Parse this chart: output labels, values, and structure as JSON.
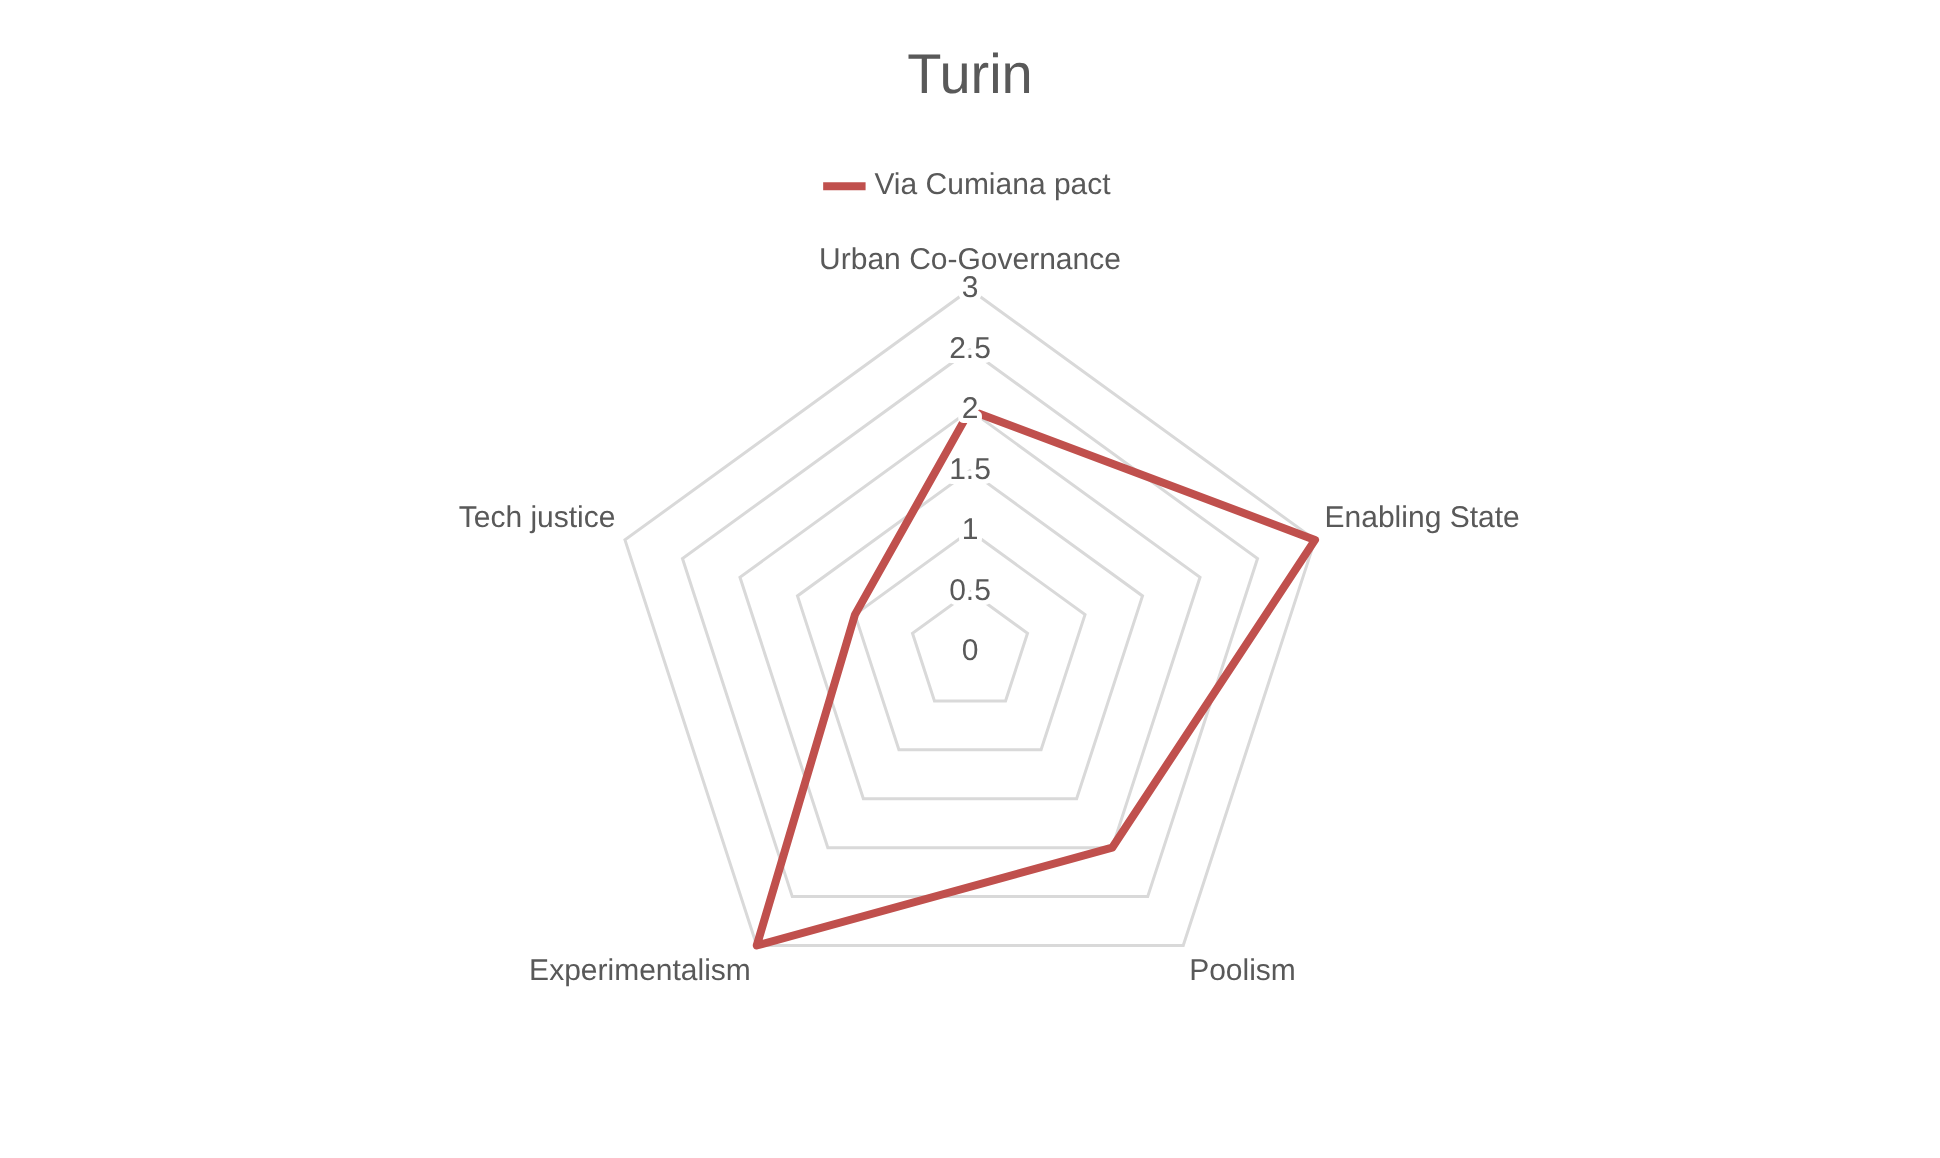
{
  "chart_data": {
    "type": "radar",
    "title": "Turin",
    "categories": [
      "Urban Co-Governance",
      "Enabling State",
      "Poolism",
      "Experimentalism",
      "Tech justice"
    ],
    "series": [
      {
        "name": "Via Cumiana pact",
        "color": "#c0504d",
        "values": [
          2,
          3,
          2,
          3,
          1
        ]
      }
    ],
    "ylim": [
      0,
      3
    ],
    "yticks": [
      0,
      0.5,
      1,
      1.5,
      2,
      2.5,
      3
    ],
    "grid": true,
    "legend": "top",
    "marker": "none"
  }
}
